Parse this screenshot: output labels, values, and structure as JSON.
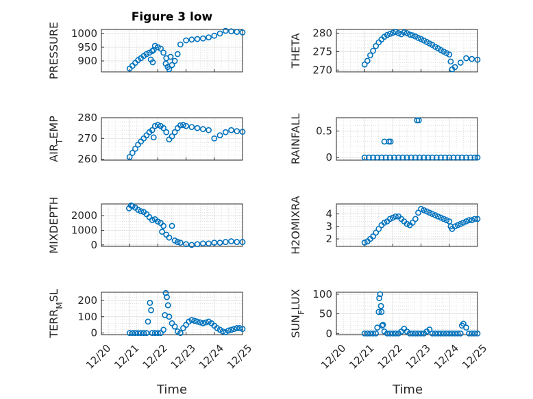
{
  "figure": {
    "title": "Figure 3 low",
    "x_ticks": [
      "12/20",
      "12/21",
      "12/22",
      "12/23",
      "12/24",
      "12/25"
    ],
    "marker_color": "#0072BD"
  },
  "chart_data": [
    {
      "id": "pressure",
      "type": "scatter",
      "ylabel": "PRESSURE",
      "xlim": [
        0,
        5
      ],
      "ylim": [
        860,
        1015
      ],
      "yticks": [
        900,
        950,
        1000
      ],
      "grid": true,
      "x": [
        1.0,
        1.1,
        1.2,
        1.3,
        1.4,
        1.5,
        1.6,
        1.7,
        1.8,
        1.85,
        1.9,
        2.0,
        2.1,
        2.2,
        2.3,
        2.35,
        2.4,
        2.5,
        2.6,
        2.7,
        2.8,
        3.0,
        3.2,
        3.4,
        3.6,
        3.8,
        4.0,
        4.2,
        4.4,
        4.6,
        4.8,
        5.0,
        1.75,
        1.82,
        2.28,
        2.45
      ],
      "y": [
        872,
        882,
        893,
        903,
        910,
        918,
        925,
        930,
        936,
        940,
        955,
        950,
        945,
        930,
        910,
        878,
        870,
        885,
        900,
        925,
        960,
        975,
        978,
        980,
        982,
        986,
        992,
        1000,
        1010,
        1008,
        1006,
        1004,
        905,
        895,
        890,
        915
      ]
    },
    {
      "id": "theta",
      "type": "scatter",
      "ylabel": "THETA",
      "xlim": [
        0,
        5
      ],
      "ylim": [
        269.5,
        281
      ],
      "yticks": [
        270,
        275,
        280
      ],
      "grid": true,
      "x": [
        1.0,
        1.1,
        1.2,
        1.3,
        1.4,
        1.5,
        1.6,
        1.7,
        1.8,
        1.9,
        2.0,
        2.1,
        2.2,
        2.3,
        2.4,
        2.5,
        2.6,
        2.7,
        2.8,
        2.9,
        3.0,
        3.1,
        3.2,
        3.3,
        3.4,
        3.5,
        3.6,
        3.7,
        3.8,
        3.9,
        4.0,
        4.05,
        4.1,
        4.2,
        4.4,
        4.6,
        4.8,
        5.0
      ],
      "y": [
        271.5,
        272.5,
        274.0,
        275.2,
        276.5,
        277.5,
        278.3,
        279.0,
        279.5,
        279.8,
        280.1,
        280.3,
        280.0,
        279.7,
        280.2,
        280.0,
        279.6,
        279.4,
        279.1,
        278.7,
        278.4,
        278.0,
        277.6,
        277.2,
        276.8,
        276.3,
        275.9,
        275.4,
        275.0,
        274.6,
        274.2,
        272.3,
        270.2,
        270.8,
        272.0,
        273.2,
        273.0,
        272.8
      ]
    },
    {
      "id": "air_temp",
      "type": "scatter",
      "ylabel": "AIR_TEMP",
      "xlim": [
        0,
        5
      ],
      "ylim": [
        259.5,
        280
      ],
      "yticks": [
        260,
        270,
        280
      ],
      "grid": true,
      "x": [
        1.0,
        1.1,
        1.2,
        1.3,
        1.4,
        1.5,
        1.6,
        1.7,
        1.8,
        1.85,
        1.9,
        2.0,
        2.1,
        2.2,
        2.3,
        2.4,
        2.5,
        2.6,
        2.7,
        2.8,
        2.9,
        3.0,
        3.2,
        3.4,
        3.6,
        3.8,
        4.0,
        4.2,
        4.4,
        4.6,
        4.8,
        5.0
      ],
      "y": [
        261,
        263,
        265,
        267,
        268.5,
        270,
        271.5,
        273,
        274,
        270.5,
        276,
        276.5,
        276,
        275,
        273,
        269.5,
        271,
        273,
        275,
        276.3,
        276.5,
        276,
        275.5,
        275,
        274.5,
        274,
        270,
        271.5,
        273,
        274,
        273.5,
        273.2
      ]
    },
    {
      "id": "rainfall",
      "type": "scatter",
      "ylabel": "RAINFALL",
      "xlim": [
        0,
        5
      ],
      "ylim": [
        -0.05,
        0.75
      ],
      "yticks": [
        0,
        0.5
      ],
      "grid": true,
      "x": [
        1.0,
        1.15,
        1.3,
        1.45,
        1.6,
        1.75,
        1.9,
        2.05,
        2.2,
        2.35,
        2.5,
        2.65,
        2.8,
        2.95,
        3.1,
        3.25,
        3.4,
        3.55,
        3.7,
        3.85,
        4.0,
        4.15,
        4.3,
        4.45,
        4.6,
        4.75,
        4.9,
        5.0,
        1.7,
        1.86,
        1.92,
        2.86,
        2.92
      ],
      "y": [
        0,
        0,
        0,
        0,
        0,
        0,
        0,
        0,
        0,
        0,
        0,
        0,
        0,
        0,
        0,
        0,
        0,
        0,
        0,
        0,
        0,
        0,
        0,
        0,
        0,
        0,
        0,
        0,
        0.3,
        0.3,
        0.3,
        0.7,
        0.7
      ]
    },
    {
      "id": "mixdepth",
      "type": "scatter",
      "ylabel": "MIXDEPTH",
      "xlim": [
        0,
        5
      ],
      "ylim": [
        -100,
        2800
      ],
      "yticks": [
        0,
        1000,
        2000
      ],
      "grid": true,
      "x": [
        0.98,
        1.05,
        1.1,
        1.2,
        1.3,
        1.4,
        1.5,
        1.6,
        1.7,
        1.8,
        1.9,
        2.0,
        2.1,
        2.15,
        2.2,
        2.3,
        2.4,
        2.5,
        2.6,
        2.7,
        2.8,
        3.0,
        3.2,
        3.4,
        3.6,
        3.8,
        4.0,
        4.2,
        4.4,
        4.6,
        4.8,
        5.0
      ],
      "y": [
        2500,
        2700,
        2650,
        2550,
        2400,
        2300,
        2250,
        2100,
        1900,
        1700,
        1750,
        1600,
        1500,
        900,
        1300,
        700,
        500,
        1300,
        300,
        200,
        150,
        50,
        0,
        50,
        100,
        100,
        150,
        150,
        200,
        250,
        200,
        200
      ]
    },
    {
      "id": "h2omixra",
      "type": "scatter",
      "ylabel": "H2OMIXRA",
      "xlim": [
        0,
        5
      ],
      "ylim": [
        1.4,
        4.8
      ],
      "yticks": [
        2,
        3,
        4
      ],
      "grid": true,
      "x": [
        1.0,
        1.1,
        1.2,
        1.3,
        1.4,
        1.5,
        1.6,
        1.7,
        1.8,
        1.9,
        2.0,
        2.1,
        2.2,
        2.3,
        2.4,
        2.5,
        2.6,
        2.7,
        2.8,
        2.9,
        3.0,
        3.1,
        3.2,
        3.3,
        3.4,
        3.5,
        3.6,
        3.7,
        3.8,
        3.9,
        4.0,
        4.05,
        4.1,
        4.2,
        4.3,
        4.4,
        4.5,
        4.6,
        4.7,
        4.8,
        4.9,
        5.0
      ],
      "y": [
        1.7,
        1.8,
        2.0,
        2.2,
        2.5,
        2.8,
        3.1,
        3.3,
        3.4,
        3.6,
        3.7,
        3.8,
        3.8,
        3.6,
        3.4,
        3.2,
        3.1,
        3.3,
        3.6,
        4.1,
        4.4,
        4.3,
        4.2,
        4.1,
        4.0,
        3.9,
        3.8,
        3.7,
        3.6,
        3.5,
        3.4,
        3.0,
        2.8,
        3.0,
        3.1,
        3.2,
        3.3,
        3.4,
        3.5,
        3.5,
        3.6,
        3.6
      ]
    },
    {
      "id": "terr_msl",
      "type": "scatter",
      "ylabel": "TERR_MSL",
      "xlim": [
        0,
        5
      ],
      "ylim": [
        -10,
        250
      ],
      "yticks": [
        0,
        100,
        200
      ],
      "grid": true,
      "x": [
        1.0,
        1.1,
        1.2,
        1.3,
        1.4,
        1.5,
        1.6,
        1.65,
        1.72,
        1.76,
        1.8,
        1.9,
        2.0,
        2.1,
        2.2,
        2.25,
        2.28,
        2.32,
        2.36,
        2.4,
        2.5,
        2.6,
        2.7,
        2.8,
        2.9,
        3.0,
        3.1,
        3.2,
        3.3,
        3.4,
        3.5,
        3.6,
        3.7,
        3.8,
        3.9,
        4.0,
        4.1,
        4.2,
        4.3,
        4.4,
        4.5,
        4.6,
        4.7,
        4.8,
        4.9,
        5.0
      ],
      "y": [
        0,
        0,
        0,
        0,
        0,
        0,
        0,
        70,
        185,
        140,
        0,
        0,
        0,
        0,
        20,
        110,
        245,
        220,
        170,
        100,
        60,
        40,
        10,
        0,
        30,
        50,
        70,
        80,
        75,
        70,
        65,
        60,
        65,
        70,
        60,
        45,
        30,
        20,
        10,
        5,
        15,
        20,
        25,
        30,
        30,
        25
      ]
    },
    {
      "id": "sun_flux",
      "type": "scatter",
      "ylabel": "SUN_FLUX",
      "xlim": [
        0,
        5
      ],
      "ylim": [
        -3,
        105
      ],
      "yticks": [
        0,
        50,
        100
      ],
      "grid": true,
      "x": [
        1.0,
        1.1,
        1.2,
        1.3,
        1.4,
        1.45,
        1.5,
        1.52,
        1.55,
        1.58,
        1.6,
        1.62,
        1.65,
        1.7,
        1.8,
        1.9,
        2.0,
        2.1,
        2.2,
        2.3,
        2.4,
        2.5,
        2.6,
        2.7,
        2.8,
        2.9,
        3.0,
        3.1,
        3.2,
        3.3,
        3.4,
        3.5,
        3.6,
        3.7,
        3.8,
        3.9,
        4.0,
        4.1,
        4.2,
        4.3,
        4.4,
        4.45,
        4.5,
        4.6,
        4.7,
        4.8,
        4.9,
        5.0
      ],
      "y": [
        0,
        0,
        0,
        0,
        0,
        15,
        55,
        90,
        100,
        70,
        55,
        20,
        22,
        5,
        0,
        0,
        0,
        0,
        0,
        5,
        12,
        5,
        0,
        0,
        0,
        0,
        0,
        0,
        5,
        10,
        0,
        0,
        0,
        0,
        0,
        0,
        0,
        0,
        0,
        0,
        0,
        20,
        25,
        15,
        0,
        0,
        0,
        0
      ]
    }
  ]
}
